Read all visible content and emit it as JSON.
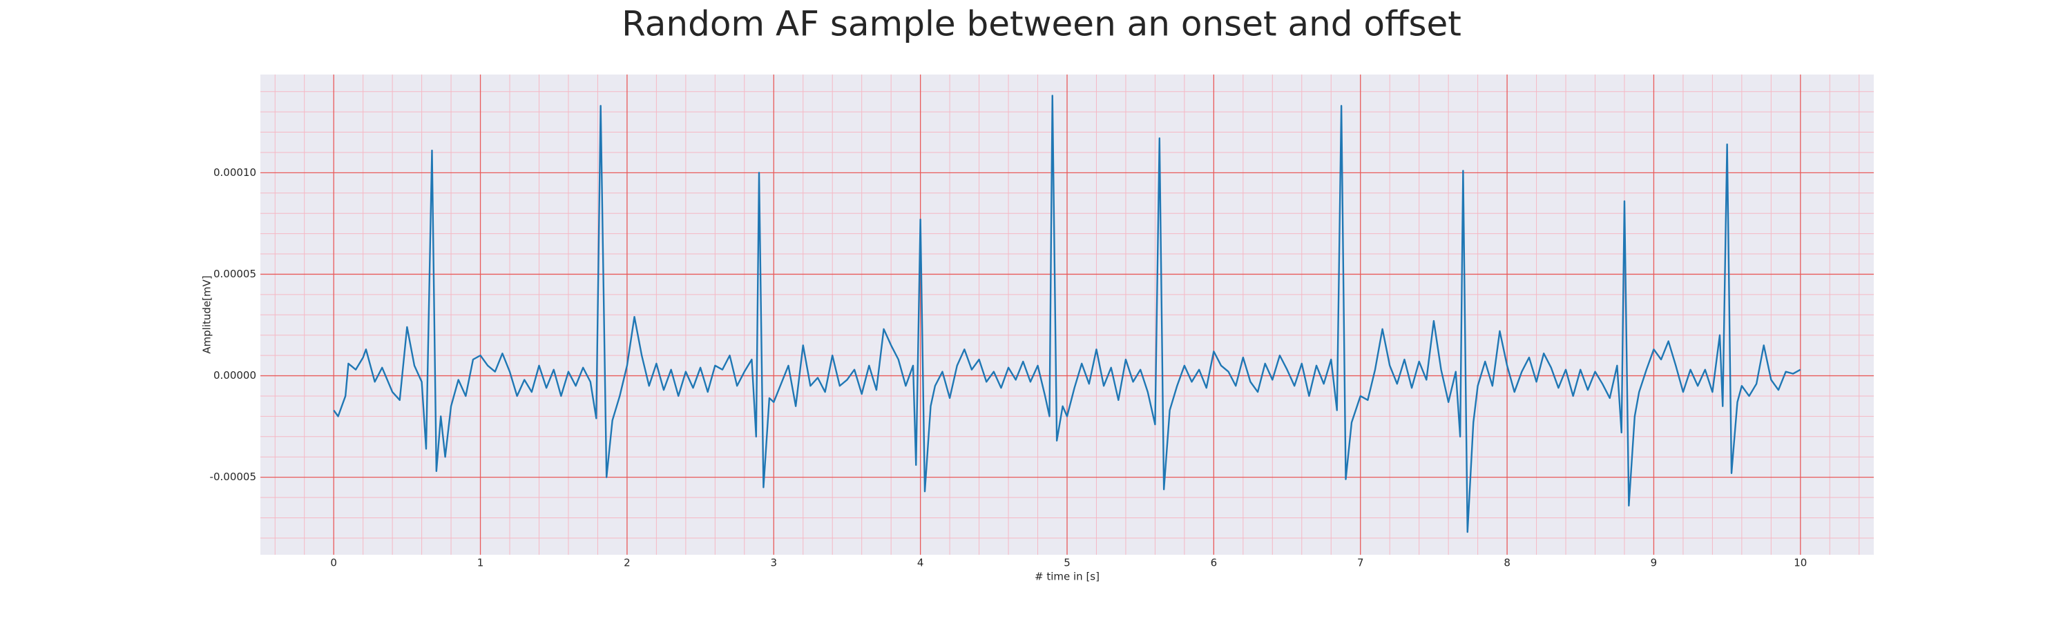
{
  "chart_data": {
    "type": "line",
    "title": "Random AF sample between an onset and offset",
    "xlabel": "# time in [s]",
    "ylabel": "Amplitude[mV]",
    "color": "#1f77b4",
    "grid": true,
    "xlim": [
      -0.5,
      10.5
    ],
    "ylim": [
      -8.82e-05,
      0.0001484
    ],
    "xticks": [
      0,
      1,
      2,
      3,
      4,
      5,
      6,
      7,
      8,
      9,
      10
    ],
    "yticks": [
      {
        "value": -5e-05,
        "label": "-0.00005"
      },
      {
        "value": 0,
        "label": "0.00000"
      },
      {
        "value": 5e-05,
        "label": "0.00005"
      },
      {
        "value": 0.0001,
        "label": "0.00010"
      }
    ],
    "xminorticks": [
      -0.4,
      -0.2,
      0.2,
      0.4,
      0.6,
      0.8,
      1.2,
      1.4,
      1.6,
      1.8,
      2.2,
      2.4,
      2.6,
      2.8,
      3.2,
      3.4,
      3.6,
      3.8,
      4.2,
      4.4,
      4.6,
      4.8,
      5.2,
      5.4,
      5.6,
      5.8,
      6.2,
      6.4,
      6.6,
      6.8,
      7.2,
      7.4,
      7.6,
      7.8,
      8.2,
      8.4,
      8.6,
      8.8,
      9.2,
      9.4,
      9.6,
      9.8,
      10.2,
      10.4
    ],
    "yminorticks": [
      -8e-05,
      -7e-05,
      -6e-05,
      -4e-05,
      -3e-05,
      -2e-05,
      -1e-05,
      1e-05,
      2e-05,
      3e-05,
      4e-05,
      6e-05,
      7e-05,
      8e-05,
      9e-05,
      0.00011,
      0.00012,
      0.00013,
      0.00014
    ],
    "x": [
      0,
      0.03,
      0.08,
      0.1,
      0.15,
      0.2,
      0.22,
      0.28,
      0.33,
      0.4,
      0.45,
      0.5,
      0.55,
      0.6,
      0.63,
      0.67,
      0.7,
      0.73,
      0.76,
      0.8,
      0.85,
      0.9,
      0.95,
      1.0,
      1.05,
      1.1,
      1.15,
      1.2,
      1.25,
      1.3,
      1.35,
      1.4,
      1.45,
      1.5,
      1.55,
      1.6,
      1.65,
      1.7,
      1.75,
      1.79,
      1.82,
      1.86,
      1.9,
      1.95,
      2.0,
      2.05,
      2.1,
      2.15,
      2.2,
      2.25,
      2.3,
      2.35,
      2.4,
      2.45,
      2.5,
      2.55,
      2.6,
      2.65,
      2.7,
      2.75,
      2.8,
      2.85,
      2.88,
      2.9,
      2.93,
      2.97,
      3.0,
      3.05,
      3.1,
      3.15,
      3.2,
      3.25,
      3.3,
      3.35,
      3.4,
      3.45,
      3.5,
      3.55,
      3.6,
      3.65,
      3.7,
      3.75,
      3.8,
      3.85,
      3.9,
      3.95,
      3.97,
      4.0,
      4.03,
      4.07,
      4.1,
      4.15,
      4.2,
      4.25,
      4.3,
      4.35,
      4.4,
      4.45,
      4.5,
      4.55,
      4.6,
      4.65,
      4.7,
      4.75,
      4.8,
      4.85,
      4.88,
      4.9,
      4.93,
      4.97,
      5.0,
      5.05,
      5.1,
      5.15,
      5.2,
      5.25,
      5.3,
      5.35,
      5.4,
      5.45,
      5.5,
      5.55,
      5.6,
      5.63,
      5.66,
      5.7,
      5.75,
      5.8,
      5.85,
      5.9,
      5.95,
      6.0,
      6.05,
      6.1,
      6.15,
      6.2,
      6.25,
      6.3,
      6.35,
      6.4,
      6.45,
      6.5,
      6.55,
      6.6,
      6.65,
      6.7,
      6.75,
      6.8,
      6.84,
      6.87,
      6.9,
      6.94,
      7.0,
      7.05,
      7.1,
      7.15,
      7.2,
      7.25,
      7.3,
      7.35,
      7.4,
      7.45,
      7.5,
      7.55,
      7.6,
      7.65,
      7.68,
      7.7,
      7.73,
      7.77,
      7.8,
      7.85,
      7.9,
      7.95,
      8.0,
      8.05,
      8.1,
      8.15,
      8.2,
      8.25,
      8.3,
      8.35,
      8.4,
      8.45,
      8.5,
      8.55,
      8.6,
      8.65,
      8.7,
      8.75,
      8.78,
      8.8,
      8.83,
      8.87,
      8.9,
      8.95,
      9.0,
      9.05,
      9.1,
      9.15,
      9.2,
      9.25,
      9.3,
      9.35,
      9.4,
      9.45,
      9.47,
      9.5,
      9.53,
      9.57,
      9.6,
      9.65,
      9.7,
      9.75,
      9.8,
      9.85,
      9.9,
      9.95,
      10.0
    ],
    "values": [
      -1.7e-05,
      -2e-05,
      -1e-05,
      6e-06,
      3e-06,
      9e-06,
      1.3e-05,
      -3e-06,
      4e-06,
      -8e-06,
      -1.2e-05,
      2.4e-05,
      5e-06,
      -3e-06,
      -3.6e-05,
      0.000111,
      -4.7e-05,
      -2e-05,
      -4e-05,
      -1.5e-05,
      -2e-06,
      -1e-05,
      8e-06,
      1e-05,
      5e-06,
      2e-06,
      1.1e-05,
      2e-06,
      -1e-05,
      -2e-06,
      -8e-06,
      5e-06,
      -6e-06,
      3e-06,
      -1e-05,
      2e-06,
      -5e-06,
      4e-06,
      -3e-06,
      -2.1e-05,
      0.000133,
      -5e-05,
      -2.2e-05,
      -1e-05,
      5e-06,
      2.9e-05,
      1e-05,
      -5e-06,
      6e-06,
      -7e-06,
      3e-06,
      -1e-05,
      2e-06,
      -6e-06,
      4e-06,
      -8e-06,
      5e-06,
      3e-06,
      1e-05,
      -5e-06,
      2e-06,
      8e-06,
      -3e-05,
      0.0001,
      -5.5e-05,
      -1.1e-05,
      -1.3e-05,
      -4e-06,
      5e-06,
      -1.5e-05,
      1.5e-05,
      -5e-06,
      -1e-06,
      -8e-06,
      1e-05,
      -5e-06,
      -2e-06,
      3e-06,
      -9e-06,
      5e-06,
      -7e-06,
      2.3e-05,
      1.5e-05,
      8e-06,
      -5e-06,
      5e-06,
      -4.4e-05,
      7.7e-05,
      -5.7e-05,
      -1.5e-05,
      -5e-06,
      2e-06,
      -1.1e-05,
      5e-06,
      1.3e-05,
      3e-06,
      8e-06,
      -3e-06,
      2e-06,
      -6e-06,
      4e-06,
      -2e-06,
      7e-06,
      -3e-06,
      5e-06,
      -1e-05,
      -2e-05,
      0.000138,
      -3.2e-05,
      -1.5e-05,
      -2e-05,
      -6e-06,
      6e-06,
      -4e-06,
      1.3e-05,
      -5e-06,
      4e-06,
      -1.2e-05,
      8e-06,
      -3e-06,
      3e-06,
      -8e-06,
      -2.4e-05,
      0.000117,
      -5.6e-05,
      -1.7e-05,
      -5e-06,
      5e-06,
      -3e-06,
      3e-06,
      -6e-06,
      1.2e-05,
      5e-06,
      2e-06,
      -5e-06,
      9e-06,
      -3e-06,
      -8e-06,
      6e-06,
      -2e-06,
      1e-05,
      3e-06,
      -5e-06,
      6e-06,
      -1e-05,
      5e-06,
      -4e-06,
      8e-06,
      -1.7e-05,
      0.000133,
      -5.1e-05,
      -2.3e-05,
      -1e-05,
      -1.2e-05,
      3e-06,
      2.3e-05,
      5e-06,
      -4e-06,
      8e-06,
      -6e-06,
      7e-06,
      -2e-06,
      2.7e-05,
      3e-06,
      -1.3e-05,
      2e-06,
      -3e-05,
      0.000101,
      -7.7e-05,
      -2.3e-05,
      -5e-06,
      7e-06,
      -5e-06,
      2.2e-05,
      5e-06,
      -8e-06,
      2e-06,
      9e-06,
      -3e-06,
      1.1e-05,
      4e-06,
      -6e-06,
      3e-06,
      -1e-05,
      3e-06,
      -7e-06,
      2e-06,
      -4e-06,
      -1.1e-05,
      5e-06,
      -2.8e-05,
      8.6e-05,
      -6.4e-05,
      -2e-05,
      -8e-06,
      3e-06,
      1.3e-05,
      8e-06,
      1.7e-05,
      5e-06,
      -8e-06,
      3e-06,
      -5e-06,
      3e-06,
      -8e-06,
      2e-05,
      -1.5e-05,
      0.000114,
      -4.8e-05,
      -1.3e-05,
      -5e-06,
      -1e-05,
      -4e-06,
      1.5e-05,
      -2e-06,
      -7e-06,
      2e-06,
      1e-06,
      3e-06
    ]
  }
}
